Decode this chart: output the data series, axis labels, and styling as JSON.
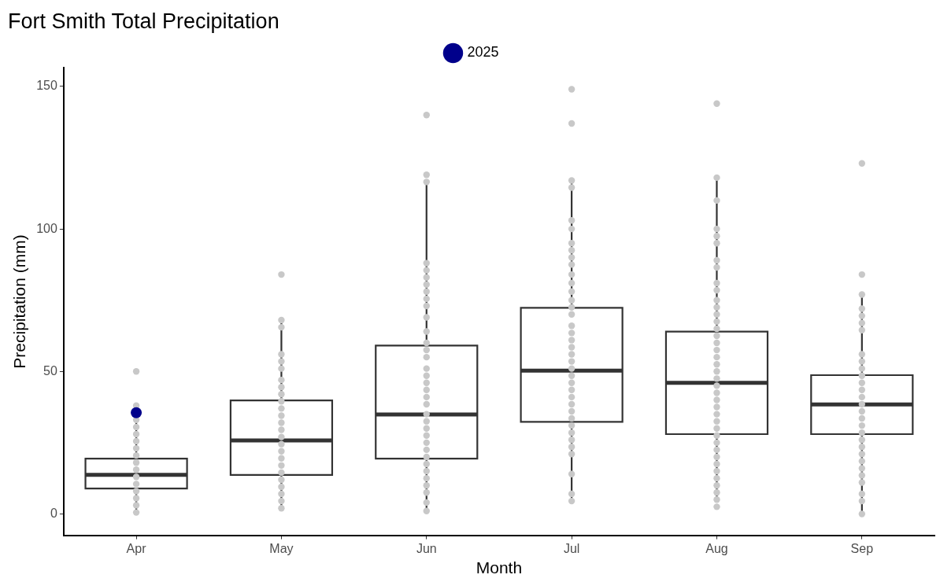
{
  "chart_data": {
    "type": "box",
    "title": "Fort Smith Total Precipitation",
    "xlabel": "Month",
    "ylabel": "Precipitation (mm)",
    "categories": [
      "Apr",
      "May",
      "Jun",
      "Jul",
      "Aug",
      "Sep"
    ],
    "boxes": [
      {
        "low": 0.8,
        "q1": 8.9,
        "median": 13.7,
        "q3": 19.4,
        "high": 33.9
      },
      {
        "low": 1.9,
        "q1": 13.7,
        "median": 25.8,
        "q3": 39.8,
        "high": 68
      },
      {
        "low": 1.3,
        "q1": 19.4,
        "median": 34.9,
        "q3": 59.1,
        "high": 116.9
      },
      {
        "low": 4.8,
        "q1": 32.3,
        "median": 50.3,
        "q3": 72.3,
        "high": 116.9
      },
      {
        "low": 4.8,
        "q1": 28,
        "median": 46,
        "q3": 64,
        "high": 118
      },
      {
        "low": 0.3,
        "q1": 28,
        "median": 38.4,
        "q3": 48.7,
        "high": 77
      }
    ],
    "series": [
      {
        "type": "scatter",
        "color": "#c8c8c8",
        "x": [
          "Apr",
          "Apr",
          "Apr",
          "Apr",
          "Apr",
          "Apr",
          "Apr",
          "Apr",
          "Apr",
          "Apr",
          "Apr",
          "Apr",
          "Apr",
          "Apr",
          "Apr",
          "Apr"
        ],
        "values": [
          50,
          38,
          33,
          30.5,
          28,
          25.5,
          23,
          20.5,
          18,
          15.5,
          13,
          10.5,
          8,
          5.5,
          3,
          0.5
        ]
      },
      {
        "type": "scatter",
        "color": "#c8c8c8",
        "x": [
          "May",
          "May",
          "May",
          "May",
          "May",
          "May",
          "May",
          "May",
          "May",
          "May",
          "May",
          "May",
          "May",
          "May",
          "May",
          "May",
          "May",
          "May",
          "May",
          "May",
          "May",
          "May",
          "May",
          "May",
          "May"
        ],
        "values": [
          84,
          68,
          65.5,
          56,
          53.5,
          51,
          47,
          44.5,
          42,
          39.5,
          37,
          34.5,
          32,
          29.5,
          27,
          24.5,
          22,
          19.5,
          17,
          14.5,
          12,
          9.5,
          7,
          4.5,
          2
        ]
      },
      {
        "type": "scatter",
        "color": "#c8c8c8",
        "x": [
          "Jun",
          "Jun",
          "Jun",
          "Jun",
          "Jun",
          "Jun",
          "Jun",
          "Jun",
          "Jun",
          "Jun",
          "Jun",
          "Jun",
          "Jun",
          "Jun",
          "Jun",
          "Jun",
          "Jun",
          "Jun",
          "Jun",
          "Jun",
          "Jun",
          "Jun",
          "Jun",
          "Jun",
          "Jun",
          "Jun",
          "Jun",
          "Jun",
          "Jun",
          "Jun",
          "Jun",
          "Jun",
          "Jun",
          "Jun",
          "Jun"
        ],
        "values": [
          140,
          119,
          116.5,
          88,
          85.5,
          83,
          80.5,
          78,
          75.5,
          73,
          69,
          64,
          60,
          57.5,
          55,
          51,
          48.5,
          46,
          43.5,
          41,
          38.5,
          35,
          32.5,
          30,
          27.5,
          25,
          22.5,
          20,
          17.5,
          15,
          12.5,
          10,
          7.5,
          4,
          1
        ]
      },
      {
        "type": "scatter",
        "color": "#c8c8c8",
        "x": [
          "Jul",
          "Jul",
          "Jul",
          "Jul",
          "Jul",
          "Jul",
          "Jul",
          "Jul",
          "Jul",
          "Jul",
          "Jul",
          "Jul",
          "Jul",
          "Jul",
          "Jul",
          "Jul",
          "Jul",
          "Jul",
          "Jul",
          "Jul",
          "Jul",
          "Jul",
          "Jul",
          "Jul",
          "Jul",
          "Jul",
          "Jul",
          "Jul",
          "Jul",
          "Jul",
          "Jul",
          "Jul",
          "Jul",
          "Jul",
          "Jul",
          "Jul",
          "Jul",
          "Jul"
        ],
        "values": [
          149,
          137,
          117,
          114.5,
          103,
          100,
          95,
          92.5,
          90,
          87.5,
          84,
          81,
          78,
          75,
          72.5,
          70,
          66,
          63.5,
          61,
          58.5,
          56,
          53.5,
          51,
          48.5,
          46,
          43.5,
          41,
          38.5,
          36,
          33.5,
          31,
          28.5,
          26,
          23.5,
          21,
          14,
          7,
          4.5
        ]
      },
      {
        "type": "scatter",
        "color": "#c8c8c8",
        "x": [
          "Aug",
          "Aug",
          "Aug",
          "Aug",
          "Aug",
          "Aug",
          "Aug",
          "Aug",
          "Aug",
          "Aug",
          "Aug",
          "Aug",
          "Aug",
          "Aug",
          "Aug",
          "Aug",
          "Aug",
          "Aug",
          "Aug",
          "Aug",
          "Aug",
          "Aug",
          "Aug",
          "Aug",
          "Aug",
          "Aug",
          "Aug",
          "Aug",
          "Aug",
          "Aug",
          "Aug",
          "Aug",
          "Aug",
          "Aug",
          "Aug",
          "Aug",
          "Aug",
          "Aug",
          "Aug",
          "Aug"
        ],
        "values": [
          144,
          118,
          110,
          100,
          97.5,
          95,
          89,
          86.5,
          81,
          78.5,
          75,
          72.5,
          70,
          67.5,
          65,
          62.5,
          60,
          57.5,
          55,
          52.5,
          50,
          47.5,
          45,
          42.5,
          40,
          37.5,
          35,
          32.5,
          30,
          27.5,
          25,
          22.5,
          20,
          17.5,
          15,
          12.5,
          10,
          7.5,
          5,
          2.5
        ]
      },
      {
        "type": "scatter",
        "color": "#c8c8c8",
        "x": [
          "Sep",
          "Sep",
          "Sep",
          "Sep",
          "Sep",
          "Sep",
          "Sep",
          "Sep",
          "Sep",
          "Sep",
          "Sep",
          "Sep",
          "Sep",
          "Sep",
          "Sep",
          "Sep",
          "Sep",
          "Sep",
          "Sep",
          "Sep",
          "Sep",
          "Sep",
          "Sep",
          "Sep",
          "Sep",
          "Sep",
          "Sep",
          "Sep",
          "Sep"
        ],
        "values": [
          123,
          84,
          77,
          72,
          69.5,
          67,
          64.5,
          56,
          53.5,
          51,
          48.5,
          46,
          43.5,
          41,
          38.5,
          36,
          33.5,
          31,
          28.5,
          26,
          23.5,
          21,
          18.5,
          16,
          13.5,
          11,
          7,
          4.5,
          0
        ]
      },
      {
        "type": "scatter",
        "name": "2025",
        "color": "#00008b",
        "x": [
          "Apr"
        ],
        "values": [
          35.5
        ]
      }
    ],
    "ylim": [
      -7.5,
      156.5
    ],
    "yticks": [
      0,
      50,
      100,
      150
    ],
    "grid": false,
    "legend": "top",
    "marker": "circle"
  }
}
